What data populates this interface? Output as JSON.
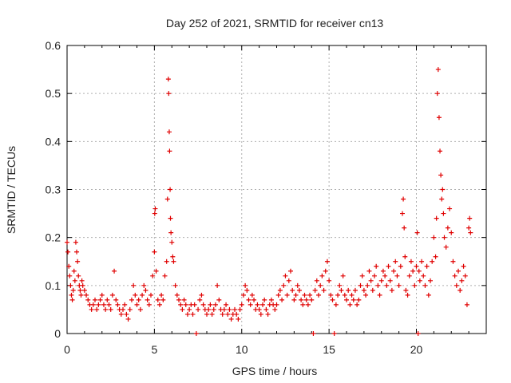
{
  "chart_data": {
    "type": "scatter",
    "title": "Day 252 of 2021, SRMTID for receiver cn13",
    "xlabel": "GPS time / hours",
    "ylabel": "SRMTID / TECUs",
    "xlim": [
      0,
      24
    ],
    "ylim": [
      0,
      0.6
    ],
    "x_ticks": [
      0,
      5,
      10,
      15,
      20
    ],
    "y_ticks": [
      0,
      0.1,
      0.2,
      0.3,
      0.4,
      0.5,
      0.6
    ],
    "x_tick_labels": [
      "0",
      "5",
      "10",
      "15",
      "20"
    ],
    "y_tick_labels": [
      "0",
      "0.1",
      "0.2",
      "0.3",
      "0.4",
      "0.5",
      "0.6"
    ],
    "grid": true,
    "marker": "+",
    "color": "#e00000",
    "series": [
      {
        "name": "SRMTID",
        "points": [
          [
            0.0,
            0.19
          ],
          [
            0.05,
            0.17
          ],
          [
            0.1,
            0.14
          ],
          [
            0.15,
            0.12
          ],
          [
            0.2,
            0.1
          ],
          [
            0.25,
            0.08
          ],
          [
            0.3,
            0.07
          ],
          [
            0.35,
            0.09
          ],
          [
            0.4,
            0.13
          ],
          [
            0.45,
            0.11
          ],
          [
            0.5,
            0.19
          ],
          [
            0.55,
            0.17
          ],
          [
            0.6,
            0.15
          ],
          [
            0.65,
            0.12
          ],
          [
            0.7,
            0.1
          ],
          [
            0.75,
            0.09
          ],
          [
            0.8,
            0.08
          ],
          [
            0.85,
            0.11
          ],
          [
            0.9,
            0.1
          ],
          [
            1.0,
            0.09
          ],
          [
            1.1,
            0.08
          ],
          [
            1.2,
            0.07
          ],
          [
            1.3,
            0.06
          ],
          [
            1.4,
            0.05
          ],
          [
            1.5,
            0.06
          ],
          [
            1.6,
            0.07
          ],
          [
            1.7,
            0.05
          ],
          [
            1.8,
            0.06
          ],
          [
            1.9,
            0.07
          ],
          [
            2.0,
            0.08
          ],
          [
            2.1,
            0.06
          ],
          [
            2.2,
            0.05
          ],
          [
            2.3,
            0.07
          ],
          [
            2.4,
            0.06
          ],
          [
            2.5,
            0.05
          ],
          [
            2.6,
            0.08
          ],
          [
            2.7,
            0.13
          ],
          [
            2.8,
            0.07
          ],
          [
            2.9,
            0.06
          ],
          [
            3.0,
            0.05
          ],
          [
            3.1,
            0.04
          ],
          [
            3.2,
            0.05
          ],
          [
            3.3,
            0.06
          ],
          [
            3.4,
            0.04
          ],
          [
            3.5,
            0.03
          ],
          [
            3.6,
            0.05
          ],
          [
            3.7,
            0.07
          ],
          [
            3.8,
            0.1
          ],
          [
            3.9,
            0.08
          ],
          [
            4.0,
            0.06
          ],
          [
            4.1,
            0.07
          ],
          [
            4.2,
            0.05
          ],
          [
            4.3,
            0.08
          ],
          [
            4.4,
            0.1
          ],
          [
            4.5,
            0.09
          ],
          [
            4.6,
            0.07
          ],
          [
            4.7,
            0.06
          ],
          [
            4.8,
            0.08
          ],
          [
            4.9,
            0.12
          ],
          [
            5.0,
            0.17
          ],
          [
            5.02,
            0.25
          ],
          [
            5.05,
            0.26
          ],
          [
            5.1,
            0.13
          ],
          [
            5.2,
            0.07
          ],
          [
            5.3,
            0.06
          ],
          [
            5.4,
            0.08
          ],
          [
            5.5,
            0.07
          ],
          [
            5.6,
            0.12
          ],
          [
            5.7,
            0.15
          ],
          [
            5.75,
            0.28
          ],
          [
            5.8,
            0.53
          ],
          [
            5.82,
            0.5
          ],
          [
            5.85,
            0.42
          ],
          [
            5.87,
            0.38
          ],
          [
            5.9,
            0.3
          ],
          [
            5.92,
            0.24
          ],
          [
            5.95,
            0.21
          ],
          [
            6.0,
            0.19
          ],
          [
            6.05,
            0.16
          ],
          [
            6.1,
            0.15
          ],
          [
            6.2,
            0.1
          ],
          [
            6.3,
            0.08
          ],
          [
            6.4,
            0.07
          ],
          [
            6.5,
            0.06
          ],
          [
            6.6,
            0.05
          ],
          [
            6.7,
            0.07
          ],
          [
            6.8,
            0.06
          ],
          [
            6.9,
            0.04
          ],
          [
            7.0,
            0.05
          ],
          [
            7.1,
            0.06
          ],
          [
            7.2,
            0.04
          ],
          [
            7.3,
            0.06
          ],
          [
            7.4,
            0.0
          ],
          [
            7.5,
            0.05
          ],
          [
            7.6,
            0.07
          ],
          [
            7.7,
            0.08
          ],
          [
            7.8,
            0.06
          ],
          [
            7.9,
            0.05
          ],
          [
            8.0,
            0.04
          ],
          [
            8.1,
            0.05
          ],
          [
            8.2,
            0.06
          ],
          [
            8.3,
            0.04
          ],
          [
            8.4,
            0.05
          ],
          [
            8.5,
            0.06
          ],
          [
            8.6,
            0.1
          ],
          [
            8.7,
            0.07
          ],
          [
            8.8,
            0.05
          ],
          [
            8.9,
            0.04
          ],
          [
            9.0,
            0.05
          ],
          [
            9.1,
            0.06
          ],
          [
            9.2,
            0.04
          ],
          [
            9.3,
            0.05
          ],
          [
            9.4,
            0.03
          ],
          [
            9.5,
            0.04
          ],
          [
            9.6,
            0.05
          ],
          [
            9.7,
            0.04
          ],
          [
            9.8,
            0.03
          ],
          [
            9.9,
            0.05
          ],
          [
            10.0,
            0.06
          ],
          [
            10.1,
            0.08
          ],
          [
            10.2,
            0.1
          ],
          [
            10.3,
            0.09
          ],
          [
            10.4,
            0.07
          ],
          [
            10.5,
            0.06
          ],
          [
            10.6,
            0.08
          ],
          [
            10.7,
            0.07
          ],
          [
            10.8,
            0.05
          ],
          [
            10.9,
            0.06
          ],
          [
            11.0,
            0.05
          ],
          [
            11.1,
            0.04
          ],
          [
            11.2,
            0.06
          ],
          [
            11.3,
            0.07
          ],
          [
            11.4,
            0.05
          ],
          [
            11.5,
            0.04
          ],
          [
            11.6,
            0.06
          ],
          [
            11.7,
            0.07
          ],
          [
            11.8,
            0.06
          ],
          [
            11.9,
            0.05
          ],
          [
            12.0,
            0.06
          ],
          [
            12.1,
            0.08
          ],
          [
            12.2,
            0.09
          ],
          [
            12.3,
            0.07
          ],
          [
            12.4,
            0.1
          ],
          [
            12.5,
            0.12
          ],
          [
            12.6,
            0.08
          ],
          [
            12.7,
            0.11
          ],
          [
            12.8,
            0.13
          ],
          [
            12.9,
            0.09
          ],
          [
            13.0,
            0.07
          ],
          [
            13.1,
            0.08
          ],
          [
            13.2,
            0.1
          ],
          [
            13.3,
            0.09
          ],
          [
            13.4,
            0.07
          ],
          [
            13.5,
            0.06
          ],
          [
            13.6,
            0.08
          ],
          [
            13.7,
            0.07
          ],
          [
            13.8,
            0.06
          ],
          [
            13.9,
            0.08
          ],
          [
            14.0,
            0.07
          ],
          [
            14.1,
            0.0
          ],
          [
            14.2,
            0.09
          ],
          [
            14.3,
            0.11
          ],
          [
            14.4,
            0.08
          ],
          [
            14.5,
            0.1
          ],
          [
            14.6,
            0.12
          ],
          [
            14.7,
            0.09
          ],
          [
            14.8,
            0.13
          ],
          [
            14.9,
            0.15
          ],
          [
            15.0,
            0.11
          ],
          [
            15.1,
            0.08
          ],
          [
            15.2,
            0.07
          ],
          [
            15.3,
            0.0
          ],
          [
            15.4,
            0.06
          ],
          [
            15.5,
            0.08
          ],
          [
            15.6,
            0.1
          ],
          [
            15.7,
            0.09
          ],
          [
            15.8,
            0.12
          ],
          [
            15.9,
            0.08
          ],
          [
            16.0,
            0.07
          ],
          [
            16.1,
            0.09
          ],
          [
            16.2,
            0.06
          ],
          [
            16.3,
            0.08
          ],
          [
            16.4,
            0.07
          ],
          [
            16.5,
            0.09
          ],
          [
            16.6,
            0.06
          ],
          [
            16.7,
            0.07
          ],
          [
            16.8,
            0.1
          ],
          [
            16.9,
            0.12
          ],
          [
            17.0,
            0.09
          ],
          [
            17.1,
            0.08
          ],
          [
            17.2,
            0.1
          ],
          [
            17.3,
            0.13
          ],
          [
            17.4,
            0.11
          ],
          [
            17.5,
            0.09
          ],
          [
            17.6,
            0.12
          ],
          [
            17.7,
            0.14
          ],
          [
            17.8,
            0.1
          ],
          [
            17.9,
            0.08
          ],
          [
            18.0,
            0.11
          ],
          [
            18.1,
            0.13
          ],
          [
            18.2,
            0.12
          ],
          [
            18.3,
            0.1
          ],
          [
            18.4,
            0.14
          ],
          [
            18.5,
            0.11
          ],
          [
            18.6,
            0.09
          ],
          [
            18.7,
            0.13
          ],
          [
            18.8,
            0.15
          ],
          [
            18.9,
            0.12
          ],
          [
            19.0,
            0.1
          ],
          [
            19.1,
            0.14
          ],
          [
            19.2,
            0.25
          ],
          [
            19.25,
            0.28
          ],
          [
            19.3,
            0.22
          ],
          [
            19.35,
            0.16
          ],
          [
            19.4,
            0.09
          ],
          [
            19.5,
            0.08
          ],
          [
            19.6,
            0.12
          ],
          [
            19.7,
            0.15
          ],
          [
            19.8,
            0.13
          ],
          [
            19.9,
            0.1
          ],
          [
            20.0,
            0.14
          ],
          [
            20.05,
            0.21
          ],
          [
            20.1,
            0.0
          ],
          [
            20.15,
            0.13
          ],
          [
            20.2,
            0.11
          ],
          [
            20.3,
            0.15
          ],
          [
            20.4,
            0.12
          ],
          [
            20.5,
            0.1
          ],
          [
            20.6,
            0.14
          ],
          [
            20.7,
            0.08
          ],
          [
            20.8,
            0.11
          ],
          [
            20.9,
            0.15
          ],
          [
            21.0,
            0.2
          ],
          [
            21.1,
            0.16
          ],
          [
            21.15,
            0.24
          ],
          [
            21.2,
            0.5
          ],
          [
            21.25,
            0.55
          ],
          [
            21.3,
            0.45
          ],
          [
            21.35,
            0.38
          ],
          [
            21.4,
            0.33
          ],
          [
            21.45,
            0.28
          ],
          [
            21.5,
            0.3
          ],
          [
            21.55,
            0.25
          ],
          [
            21.6,
            0.2
          ],
          [
            21.7,
            0.18
          ],
          [
            21.8,
            0.22
          ],
          [
            21.9,
            0.26
          ],
          [
            22.0,
            0.21
          ],
          [
            22.1,
            0.15
          ],
          [
            22.2,
            0.12
          ],
          [
            22.3,
            0.1
          ],
          [
            22.4,
            0.13
          ],
          [
            22.5,
            0.09
          ],
          [
            22.6,
            0.11
          ],
          [
            22.7,
            0.14
          ],
          [
            22.8,
            0.12
          ],
          [
            22.9,
            0.06
          ],
          [
            23.0,
            0.22
          ],
          [
            23.05,
            0.24
          ],
          [
            23.1,
            0.21
          ]
        ]
      }
    ]
  }
}
